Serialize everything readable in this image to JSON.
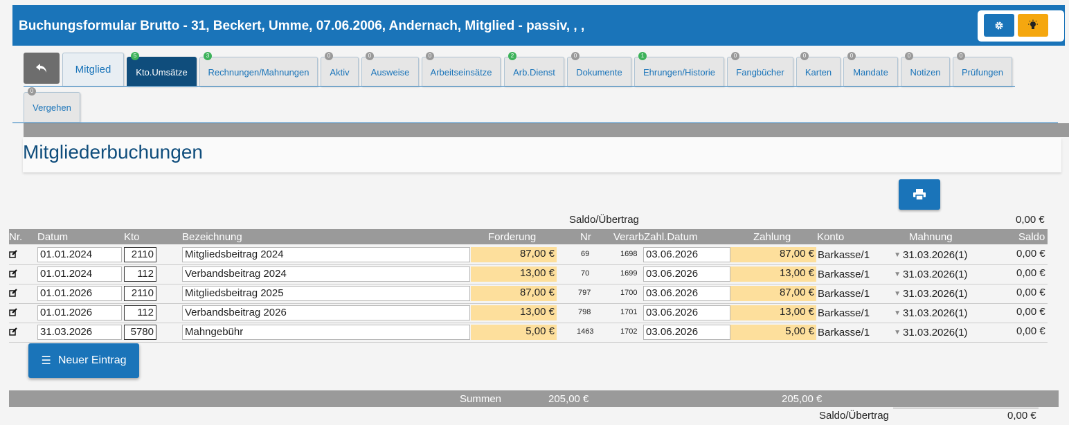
{
  "window": {
    "title": "Buchungsformular Brutto - 31, Beckert, Umme, 07.06.2006, Andernach, Mitglied - passiv, , ,"
  },
  "tabs": [
    {
      "label": "Mitglied",
      "badge": ""
    },
    {
      "label": "Kto.Umsätze",
      "badge": "5"
    },
    {
      "label": "Rechnungen/Mahnungen",
      "badge": "3"
    },
    {
      "label": "Aktiv",
      "badge": "0"
    },
    {
      "label": "Ausweise",
      "badge": "0"
    },
    {
      "label": "Arbeitseinsätze",
      "badge": "0"
    },
    {
      "label": "Arb.Dienst",
      "badge": "2"
    },
    {
      "label": "Dokumente",
      "badge": "0"
    },
    {
      "label": "Ehrungen/Historie",
      "badge": "1"
    },
    {
      "label": "Fangbücher",
      "badge": "0"
    },
    {
      "label": "Karten",
      "badge": "0"
    },
    {
      "label": "Mandate",
      "badge": "0"
    },
    {
      "label": "Notizen",
      "badge": "0"
    },
    {
      "label": "Prüfungen",
      "badge": "0"
    },
    {
      "label": "Vergehen",
      "badge": "0"
    }
  ],
  "section": {
    "title": "Mitgliederbuchungen"
  },
  "saldo_top": {
    "label": "Saldo/Übertrag",
    "value": "0,00 €"
  },
  "table": {
    "headers": {
      "nr": "Nr.",
      "datum": "Datum",
      "kto": "Kto",
      "bez": "Bezeichnung",
      "ford": "Forderung",
      "nr2": "Nr",
      "verarb": "Verarb",
      "zdat": "Zahl.Datum",
      "zahl": "Zahlung",
      "konto": "Konto",
      "mahn": "Mahnung",
      "saldo": "Saldo"
    },
    "rows": [
      {
        "datum": "01.01.2024",
        "kto": "2110",
        "bez": "Mitgliedsbeitrag 2024",
        "ford": "87,00 €",
        "nr": "69",
        "verarb": "1698",
        "zdat": "03.06.2026",
        "zahl": "87,00 €",
        "konto": "Barkasse/1",
        "mahn": "31.03.2026(1)",
        "saldo": "0,00 €"
      },
      {
        "datum": "01.01.2024",
        "kto": "112",
        "bez": "Verbandsbeitrag 2024",
        "ford": "13,00 €",
        "nr": "70",
        "verarb": "1699",
        "zdat": "03.06.2026",
        "zahl": "13,00 €",
        "konto": "Barkasse/1",
        "mahn": "31.03.2026(1)",
        "saldo": "0,00 €"
      },
      {
        "datum": "01.01.2026",
        "kto": "2110",
        "bez": "Mitgliedsbeitrag 2025",
        "ford": "87,00 €",
        "nr": "797",
        "verarb": "1700",
        "zdat": "03.06.2026",
        "zahl": "87,00 €",
        "konto": "Barkasse/1",
        "mahn": "31.03.2026(1)",
        "saldo": "0,00 €"
      },
      {
        "datum": "01.01.2026",
        "kto": "112",
        "bez": "Verbandsbeitrag 2026",
        "ford": "13,00 €",
        "nr": "798",
        "verarb": "1701",
        "zdat": "03.06.2026",
        "zahl": "13,00 €",
        "konto": "Barkasse/1",
        "mahn": "31.03.2026(1)",
        "saldo": "0,00 €"
      },
      {
        "datum": "31.03.2026",
        "kto": "5780",
        "bez": "Mahngebühr",
        "ford": "5,00 €",
        "nr": "1463",
        "verarb": "1702",
        "zdat": "03.06.2026",
        "zahl": "5,00 €",
        "konto": "Barkasse/1",
        "mahn": "31.03.2026(1)",
        "saldo": "0,00 €"
      }
    ]
  },
  "new_entry": {
    "label": "Neuer Eintrag"
  },
  "sums": {
    "label": "Summen",
    "forderung": "205,00 €",
    "zahlung": "205,00 €"
  },
  "saldo_bottom": {
    "label": "Saldo/Übertrag",
    "value": "0,00 €"
  },
  "icons": [
    "gear-icon",
    "lightbulb-icon",
    "back-arrow-icon",
    "print-icon",
    "edit-icon",
    "list-icon",
    "chevron-down-icon"
  ],
  "colors": {
    "primary": "#1a74b9",
    "active_tab": "#0f4d7c",
    "warning": "#f5a70f",
    "amount_bg": "#fddf9c",
    "header_gray": "#9a9a9a"
  }
}
